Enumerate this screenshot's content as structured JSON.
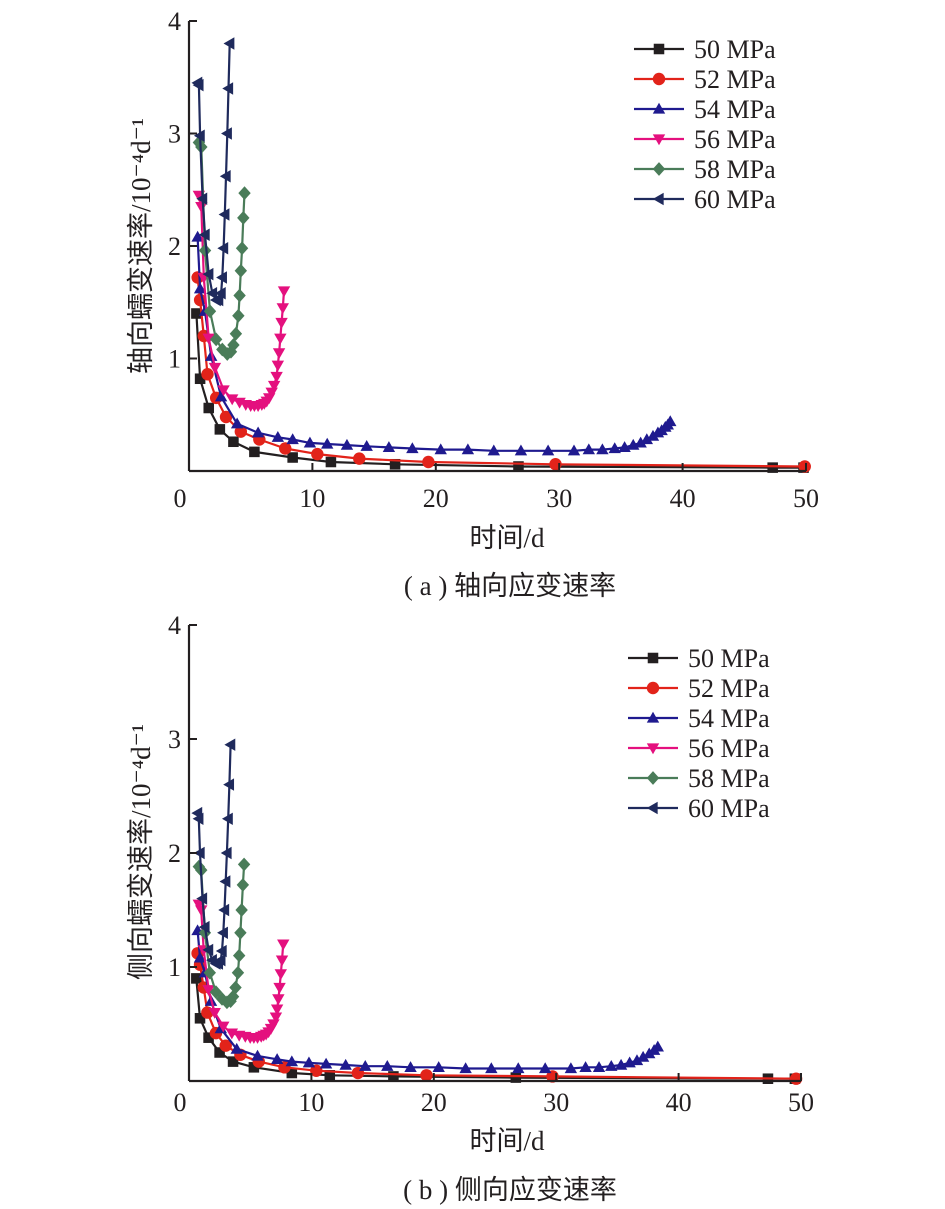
{
  "chart_data": [
    {
      "type": "line",
      "xlabel": "时间/d",
      "ylabel": "轴向蠕变速率/10⁻⁴d⁻¹",
      "caption": "( a ) 轴向应变速率",
      "xlim": [
        0,
        50
      ],
      "ylim": [
        0,
        4
      ],
      "xticks": [
        "0",
        "10",
        "20",
        "30",
        "40",
        "50"
      ],
      "yticks": [
        "1",
        "2",
        "3",
        "4"
      ],
      "grid": false,
      "legend_position": "top-right",
      "series": [
        {
          "name": "50 MPa",
          "color": "#231f20",
          "marker": "square",
          "x": [
            0.6,
            0.9,
            1.6,
            2.5,
            3.6,
            5.3,
            8.4,
            11.5,
            16.7,
            26.7,
            47.3,
            49.8
          ],
          "y": [
            1.4,
            0.82,
            0.56,
            0.37,
            0.26,
            0.17,
            0.12,
            0.08,
            0.06,
            0.04,
            0.03,
            0.03
          ]
        },
        {
          "name": "52 MPa",
          "color": "#e2231a",
          "marker": "circle",
          "x": [
            0.7,
            0.9,
            1.2,
            1.5,
            2.2,
            3.0,
            4.2,
            5.7,
            7.8,
            10.4,
            13.8,
            19.4,
            29.7,
            49.9
          ],
          "y": [
            1.72,
            1.52,
            1.2,
            0.86,
            0.65,
            0.48,
            0.35,
            0.28,
            0.2,
            0.15,
            0.11,
            0.08,
            0.06,
            0.04
          ]
        },
        {
          "name": "54 MPa",
          "color": "#1f1a8f",
          "marker": "triangle-up",
          "x": [
            0.7,
            0.9,
            1.3,
            1.8,
            2.6,
            3.9,
            5.6,
            7.2,
            8.4,
            9.8,
            11.2,
            12.8,
            14.4,
            16.2,
            18.1,
            20.4,
            22.6,
            24.7,
            26.9,
            29.1,
            31.2,
            32.4,
            33.5,
            34.5,
            35.3,
            36.0,
            36.6,
            37.1,
            37.6,
            38.0,
            38.3,
            38.6,
            38.8,
            39.0
          ],
          "y": [
            2.08,
            1.62,
            1.42,
            1.02,
            0.66,
            0.42,
            0.34,
            0.3,
            0.28,
            0.25,
            0.24,
            0.23,
            0.22,
            0.21,
            0.2,
            0.19,
            0.19,
            0.18,
            0.18,
            0.18,
            0.18,
            0.19,
            0.19,
            0.2,
            0.21,
            0.23,
            0.25,
            0.28,
            0.31,
            0.34,
            0.36,
            0.39,
            0.41,
            0.44
          ]
        },
        {
          "name": "56 MPa",
          "color": "#e4107e",
          "marker": "triangle-down",
          "x": [
            0.8,
            1.0,
            1.2,
            1.6,
            2.1,
            2.8,
            3.5,
            4.1,
            4.6,
            5.0,
            5.3,
            5.6,
            5.9,
            6.1,
            6.3,
            6.5,
            6.7,
            6.9,
            7.1,
            7.2,
            7.3,
            7.4,
            7.5,
            7.6,
            7.7
          ],
          "y": [
            2.45,
            2.35,
            1.72,
            1.18,
            0.92,
            0.72,
            0.64,
            0.61,
            0.59,
            0.58,
            0.58,
            0.58,
            0.59,
            0.6,
            0.62,
            0.65,
            0.7,
            0.76,
            0.84,
            0.94,
            1.05,
            1.18,
            1.32,
            1.45,
            1.6
          ]
        },
        {
          "name": "58 MPa",
          "color": "#4a7c59",
          "marker": "diamond",
          "x": [
            0.8,
            1.0,
            1.3,
            1.7,
            2.2,
            2.7,
            3.1,
            3.4,
            3.6,
            3.8,
            4.0,
            4.1,
            4.2,
            4.3,
            4.4,
            4.5
          ],
          "y": [
            2.92,
            2.88,
            1.96,
            1.42,
            1.17,
            1.08,
            1.04,
            1.06,
            1.12,
            1.22,
            1.38,
            1.56,
            1.78,
            1.98,
            2.25,
            2.47
          ]
        },
        {
          "name": "60 MPa",
          "color": "#1f2a5c",
          "marker": "triangle-left",
          "x": [
            0.7,
            0.8,
            0.9,
            1.1,
            1.3,
            1.6,
            1.9,
            2.2,
            2.4,
            2.6,
            2.7,
            2.8,
            2.9,
            3.0,
            3.1,
            3.2,
            3.3
          ],
          "y": [
            3.45,
            3.43,
            2.98,
            2.42,
            2.1,
            1.75,
            1.58,
            1.52,
            1.52,
            1.58,
            1.72,
            1.98,
            2.28,
            2.62,
            3.0,
            3.4,
            3.8
          ]
        }
      ]
    },
    {
      "type": "line",
      "xlabel": "时间/d",
      "ylabel": "侧向蠕变速率/10⁻⁴d⁻¹",
      "caption": "( b ) 侧向应变速率",
      "xlim": [
        0,
        50
      ],
      "ylim": [
        0,
        4
      ],
      "xticks": [
        "0",
        "10",
        "20",
        "30",
        "40",
        "50"
      ],
      "yticks": [
        "1",
        "2",
        "3",
        "4"
      ],
      "grid": false,
      "legend_position": "top-right",
      "series": [
        {
          "name": "50 MPa",
          "color": "#231f20",
          "marker": "square",
          "x": [
            0.6,
            0.9,
            1.6,
            2.5,
            3.6,
            5.3,
            8.4,
            11.5,
            16.7,
            26.7,
            47.3,
            49.5
          ],
          "y": [
            0.9,
            0.55,
            0.38,
            0.25,
            0.17,
            0.12,
            0.07,
            0.05,
            0.04,
            0.03,
            0.02,
            0.02
          ]
        },
        {
          "name": "52 MPa",
          "color": "#e2231a",
          "marker": "circle",
          "x": [
            0.7,
            0.9,
            1.2,
            1.5,
            2.2,
            3.0,
            4.2,
            5.7,
            7.8,
            10.4,
            13.8,
            19.4,
            29.7,
            49.6
          ],
          "y": [
            1.12,
            1.02,
            0.82,
            0.6,
            0.42,
            0.31,
            0.23,
            0.17,
            0.12,
            0.09,
            0.07,
            0.05,
            0.04,
            0.02
          ]
        },
        {
          "name": "54 MPa",
          "color": "#1f1a8f",
          "marker": "triangle-up",
          "x": [
            0.7,
            0.9,
            1.3,
            1.8,
            2.6,
            3.9,
            5.6,
            7.2,
            8.4,
            9.8,
            11.2,
            12.8,
            14.4,
            16.2,
            18.1,
            20.4,
            22.6,
            24.7,
            26.9,
            29.1,
            31.2,
            32.4,
            33.5,
            34.5,
            35.3,
            36.0,
            36.6,
            37.1,
            37.6,
            38.0,
            38.3
          ],
          "y": [
            1.32,
            1.08,
            0.95,
            0.7,
            0.46,
            0.28,
            0.22,
            0.19,
            0.17,
            0.16,
            0.15,
            0.14,
            0.13,
            0.13,
            0.12,
            0.12,
            0.11,
            0.11,
            0.11,
            0.11,
            0.11,
            0.12,
            0.12,
            0.13,
            0.14,
            0.16,
            0.18,
            0.21,
            0.24,
            0.27,
            0.3
          ]
        },
        {
          "name": "56 MPa",
          "color": "#e4107e",
          "marker": "triangle-down",
          "x": [
            0.8,
            1.0,
            1.2,
            1.6,
            2.1,
            2.8,
            3.5,
            4.1,
            4.6,
            5.0,
            5.3,
            5.6,
            5.9,
            6.1,
            6.3,
            6.5,
            6.7,
            6.9,
            7.1,
            7.2,
            7.3,
            7.4,
            7.5,
            7.6,
            7.7
          ],
          "y": [
            1.55,
            1.5,
            1.15,
            0.8,
            0.6,
            0.48,
            0.42,
            0.4,
            0.39,
            0.38,
            0.38,
            0.38,
            0.39,
            0.4,
            0.41,
            0.43,
            0.46,
            0.5,
            0.56,
            0.63,
            0.72,
            0.82,
            0.94,
            1.06,
            1.2
          ]
        },
        {
          "name": "58 MPa",
          "color": "#4a7c59",
          "marker": "diamond",
          "x": [
            0.8,
            1.0,
            1.3,
            1.7,
            2.2,
            2.7,
            3.1,
            3.4,
            3.6,
            3.8,
            4.0,
            4.1,
            4.2,
            4.3,
            4.4,
            4.5
          ],
          "y": [
            1.88,
            1.85,
            1.3,
            0.95,
            0.78,
            0.72,
            0.69,
            0.7,
            0.74,
            0.82,
            0.95,
            1.1,
            1.3,
            1.5,
            1.72,
            1.9
          ]
        },
        {
          "name": "60 MPa",
          "color": "#1f2a5c",
          "marker": "triangle-left",
          "x": [
            0.7,
            0.8,
            0.9,
            1.1,
            1.3,
            1.6,
            1.9,
            2.2,
            2.4,
            2.6,
            2.7,
            2.8,
            2.9,
            3.0,
            3.1,
            3.2,
            3.3,
            3.4
          ],
          "y": [
            2.35,
            2.3,
            2.0,
            1.6,
            1.35,
            1.15,
            1.06,
            1.03,
            1.03,
            1.06,
            1.14,
            1.3,
            1.5,
            1.75,
            2.0,
            2.3,
            2.6,
            2.95
          ]
        }
      ]
    }
  ]
}
